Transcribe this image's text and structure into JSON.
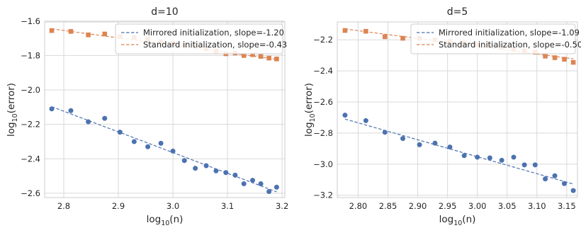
{
  "chart_data": [
    {
      "type": "scatter",
      "title": "d=10",
      "xlabel_main": "log",
      "xlabel_sub": "10",
      "xlabel_tail": "(n)",
      "ylabel_main": "log",
      "ylabel_sub": "10",
      "ylabel_tail": "(error)",
      "xlim": [
        2.765,
        3.205
      ],
      "ylim": [
        -2.625,
        -1.605
      ],
      "xticks": [
        2.8,
        2.9,
        3.0,
        3.1,
        3.2
      ],
      "xtick_labels": [
        "2.8",
        "2.9",
        "3.0",
        "3.1",
        "3.2"
      ],
      "yticks": [
        -2.6,
        -2.4,
        -2.2,
        -2.0,
        -1.8,
        -1.6
      ],
      "ytick_labels": [
        "−2.6",
        "−2.4",
        "−2.2",
        "−2.0",
        "−1.8",
        "−1.6"
      ],
      "grid": true,
      "legend_position": "top-right",
      "series": [
        {
          "name": "Mirrored initialization, slope=-1.20",
          "color": "#4c72b0",
          "marker": "circle",
          "x": [
            2.778,
            2.813,
            2.845,
            2.875,
            2.903,
            2.929,
            2.954,
            2.978,
            3.0,
            3.021,
            3.041,
            3.061,
            3.079,
            3.097,
            3.114,
            3.13,
            3.146,
            3.161,
            3.176,
            3.19
          ],
          "y": [
            -2.11,
            -2.12,
            -2.185,
            -2.165,
            -2.245,
            -2.3,
            -2.33,
            -2.31,
            -2.355,
            -2.41,
            -2.455,
            -2.44,
            -2.47,
            -2.48,
            -2.495,
            -2.545,
            -2.525,
            -2.545,
            -2.59,
            -2.565
          ],
          "fit": {
            "x": [
              2.778,
              3.19
            ],
            "y": [
              -2.097,
              -2.592
            ]
          }
        },
        {
          "name": "Standard initialization, slope=-0.43",
          "color": "#dd8452",
          "marker": "square",
          "x": [
            2.778,
            2.813,
            2.845,
            2.875,
            2.903,
            2.929,
            2.954,
            2.978,
            3.0,
            3.021,
            3.041,
            3.061,
            3.079,
            3.097,
            3.114,
            3.13,
            3.146,
            3.161,
            3.176,
            3.19
          ],
          "y": [
            -1.655,
            -1.66,
            -1.68,
            -1.675,
            -1.69,
            -1.695,
            -1.705,
            -1.72,
            -1.73,
            -1.74,
            -1.745,
            -1.76,
            -1.775,
            -1.79,
            -1.785,
            -1.8,
            -1.795,
            -1.805,
            -1.815,
            -1.82
          ],
          "fit": {
            "x": [
              2.778,
              3.19
            ],
            "y": [
              -1.645,
              -1.822
            ]
          }
        }
      ]
    },
    {
      "type": "scatter",
      "title": "d=5",
      "xlabel_main": "log",
      "xlabel_sub": "10",
      "xlabel_tail": "(n)",
      "ylabel_main": "log",
      "ylabel_sub": "10",
      "ylabel_tail": "(error)",
      "xlim": [
        2.765,
        3.168
      ],
      "ylim": [
        -3.215,
        -2.085
      ],
      "xticks": [
        2.8,
        2.85,
        2.9,
        2.95,
        3.0,
        3.05,
        3.1,
        3.15
      ],
      "xtick_labels": [
        "2.80",
        "2.85",
        "2.90",
        "2.95",
        "3.00",
        "3.05",
        "3.10",
        "3.15"
      ],
      "yticks": [
        -3.2,
        -3.0,
        -2.8,
        -2.6,
        -2.4,
        -2.2
      ],
      "ytick_labels": [
        "−3.2",
        "−3.0",
        "−2.8",
        "−2.6",
        "−2.4",
        "−2.2"
      ],
      "grid": true,
      "legend_position": "top-right",
      "series": [
        {
          "name": "Mirrored initialization, slope=-1.09",
          "color": "#4c72b0",
          "marker": "circle",
          "x": [
            2.778,
            2.813,
            2.845,
            2.875,
            2.903,
            2.929,
            2.954,
            2.978,
            3.0,
            3.021,
            3.041,
            3.061,
            3.079,
            3.097,
            3.114,
            3.13,
            3.146,
            3.161
          ],
          "y": [
            -2.685,
            -2.72,
            -2.795,
            -2.835,
            -2.875,
            -2.865,
            -2.89,
            -2.945,
            -2.955,
            -2.96,
            -2.975,
            -2.955,
            -3.005,
            -3.005,
            -3.095,
            -3.075,
            -3.125,
            -3.17
          ],
          "fit": {
            "x": [
              2.778,
              3.161
            ],
            "y": [
              -2.71,
              -3.128
            ]
          }
        },
        {
          "name": "Standard initialization, slope=-0.50",
          "color": "#dd8452",
          "marker": "square",
          "x": [
            2.778,
            2.813,
            2.845,
            2.875,
            2.903,
            2.929,
            2.954,
            2.978,
            3.0,
            3.021,
            3.041,
            3.061,
            3.079,
            3.097,
            3.114,
            3.13,
            3.146,
            3.161
          ],
          "y": [
            -2.14,
            -2.145,
            -2.18,
            -2.19,
            -2.19,
            -2.2,
            -2.21,
            -2.22,
            -2.23,
            -2.235,
            -2.245,
            -2.26,
            -2.27,
            -2.28,
            -2.305,
            -2.315,
            -2.325,
            -2.345
          ],
          "fit": {
            "x": [
              2.778,
              3.161
            ],
            "y": [
              -2.13,
              -2.322
            ]
          }
        }
      ]
    }
  ]
}
